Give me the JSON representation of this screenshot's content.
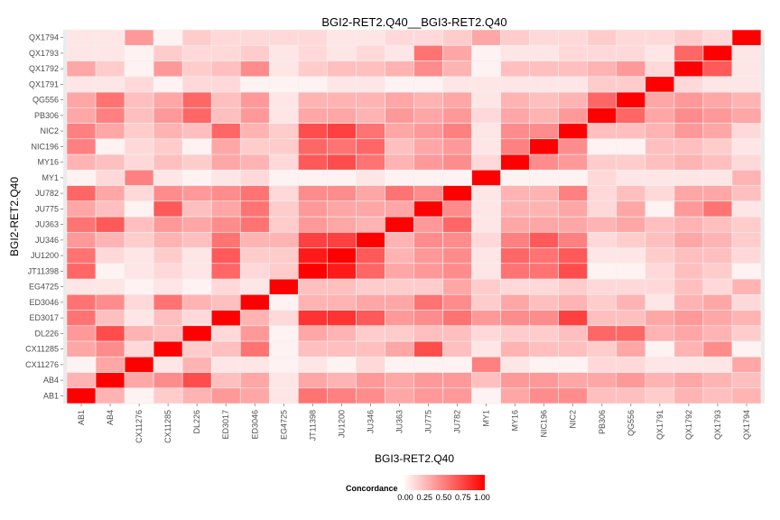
{
  "chart_data": {
    "type": "heatmap",
    "title": "BGI2-RET2.Q40__BGI3-RET2.Q40",
    "xlabel": "BGI3-RET2.Q40",
    "ylabel": "BGI2-RET2.Q40",
    "x_categories": [
      "AB1",
      "AB4",
      "CX11276",
      "CX11285",
      "DL226",
      "ED3017",
      "ED3046",
      "EG4725",
      "JT11398",
      "JU1200",
      "JU346",
      "JU363",
      "JU775",
      "JU782",
      "MY1",
      "MY16",
      "NIC196",
      "NIC2",
      "PB306",
      "QG556",
      "QX1791",
      "QX1792",
      "QX1793",
      "QX1794"
    ],
    "y_categories": [
      "AB1",
      "AB4",
      "CX11276",
      "CX11285",
      "DL226",
      "ED3017",
      "ED3046",
      "EG4725",
      "JT11398",
      "JU1200",
      "JU346",
      "JU363",
      "JU775",
      "JU782",
      "MY1",
      "MY16",
      "NIC196",
      "NIC2",
      "PB306",
      "QG556",
      "QX1791",
      "QX1792",
      "QX1793",
      "QX1794"
    ],
    "value_range": [
      0,
      1
    ],
    "values": [
      [
        1.0,
        0.3,
        0.05,
        0.2,
        0.3,
        0.4,
        0.35,
        0.1,
        0.55,
        0.5,
        0.45,
        0.35,
        0.4,
        0.4,
        0.05,
        0.35,
        0.45,
        0.45,
        0.25,
        0.25,
        0.2,
        0.3,
        0.25,
        0.3
      ],
      [
        0.3,
        1.0,
        0.35,
        0.45,
        0.7,
        0.25,
        0.35,
        0.1,
        0.35,
        0.3,
        0.4,
        0.35,
        0.4,
        0.4,
        0.25,
        0.4,
        0.4,
        0.35,
        0.35,
        0.4,
        0.3,
        0.35,
        0.3,
        0.25
      ],
      [
        0.05,
        0.35,
        1.0,
        0.1,
        0.3,
        0.1,
        0.1,
        0.05,
        0.1,
        0.05,
        0.15,
        0.05,
        0.05,
        0.05,
        0.5,
        0.1,
        0.05,
        0.05,
        0.15,
        0.15,
        0.1,
        0.1,
        0.1,
        0.35
      ],
      [
        0.35,
        0.45,
        0.15,
        1.0,
        0.2,
        0.25,
        0.55,
        0.05,
        0.25,
        0.25,
        0.25,
        0.35,
        0.7,
        0.25,
        0.1,
        0.3,
        0.25,
        0.25,
        0.2,
        0.35,
        0.05,
        0.3,
        0.45,
        0.05
      ],
      [
        0.4,
        0.7,
        0.3,
        0.25,
        1.0,
        0.15,
        0.4,
        0.05,
        0.35,
        0.3,
        0.2,
        0.2,
        0.25,
        0.25,
        0.15,
        0.2,
        0.2,
        0.25,
        0.6,
        0.6,
        0.3,
        0.35,
        0.3,
        0.2
      ],
      [
        0.55,
        0.25,
        0.1,
        0.25,
        0.15,
        1.0,
        0.3,
        0.15,
        0.8,
        0.8,
        0.65,
        0.4,
        0.45,
        0.55,
        0.4,
        0.45,
        0.45,
        0.75,
        0.25,
        0.25,
        0.35,
        0.4,
        0.35,
        0.3
      ],
      [
        0.55,
        0.45,
        0.15,
        0.55,
        0.3,
        0.25,
        1.0,
        0.05,
        0.3,
        0.3,
        0.35,
        0.35,
        0.55,
        0.45,
        0.2,
        0.35,
        0.25,
        0.3,
        0.2,
        0.3,
        0.1,
        0.3,
        0.35,
        0.15
      ],
      [
        0.1,
        0.1,
        0.05,
        0.1,
        0.05,
        0.15,
        0.1,
        1.0,
        0.25,
        0.25,
        0.2,
        0.2,
        0.2,
        0.35,
        0.2,
        0.15,
        0.15,
        0.2,
        0.15,
        0.15,
        0.15,
        0.25,
        0.15,
        0.3
      ],
      [
        0.6,
        0.05,
        0.1,
        0.15,
        0.1,
        0.6,
        0.15,
        0.2,
        1.0,
        0.9,
        0.6,
        0.35,
        0.4,
        0.45,
        0.1,
        0.55,
        0.55,
        0.7,
        0.05,
        0.05,
        0.15,
        0.25,
        0.2,
        0.05
      ],
      [
        0.55,
        0.15,
        0.1,
        0.2,
        0.1,
        0.65,
        0.2,
        0.2,
        0.9,
        1.0,
        0.65,
        0.3,
        0.4,
        0.45,
        0.1,
        0.6,
        0.55,
        0.65,
        0.1,
        0.1,
        0.2,
        0.25,
        0.25,
        0.15
      ],
      [
        0.4,
        0.3,
        0.2,
        0.3,
        0.25,
        0.55,
        0.3,
        0.3,
        0.75,
        0.75,
        1.0,
        0.3,
        0.45,
        0.45,
        0.15,
        0.5,
        0.65,
        0.5,
        0.15,
        0.2,
        0.25,
        0.35,
        0.3,
        0.2
      ],
      [
        0.55,
        0.65,
        0.25,
        0.4,
        0.35,
        0.45,
        0.55,
        0.2,
        0.4,
        0.35,
        0.3,
        1.0,
        0.4,
        0.6,
        0.1,
        0.35,
        0.35,
        0.35,
        0.3,
        0.35,
        0.25,
        0.3,
        0.25,
        0.2
      ],
      [
        0.35,
        0.25,
        0.05,
        0.65,
        0.25,
        0.35,
        0.55,
        0.2,
        0.4,
        0.35,
        0.35,
        0.35,
        1.0,
        0.45,
        0.1,
        0.3,
        0.3,
        0.35,
        0.15,
        0.35,
        0.05,
        0.4,
        0.55,
        0.1
      ],
      [
        0.6,
        0.35,
        0.15,
        0.45,
        0.4,
        0.45,
        0.55,
        0.15,
        0.45,
        0.45,
        0.35,
        0.55,
        0.45,
        1.0,
        0.1,
        0.3,
        0.3,
        0.5,
        0.15,
        0.25,
        0.15,
        0.35,
        0.35,
        0.25
      ],
      [
        0.05,
        0.15,
        0.5,
        0.1,
        0.05,
        0.1,
        0.15,
        0.05,
        0.05,
        0.05,
        0.1,
        0.05,
        0.05,
        0.05,
        1.0,
        0.05,
        0.05,
        0.05,
        0.15,
        0.1,
        0.1,
        0.1,
        0.1,
        0.3
      ],
      [
        0.3,
        0.25,
        0.15,
        0.25,
        0.2,
        0.35,
        0.3,
        0.15,
        0.65,
        0.7,
        0.55,
        0.3,
        0.4,
        0.45,
        0.15,
        1.0,
        0.45,
        0.4,
        0.2,
        0.2,
        0.25,
        0.3,
        0.25,
        0.15
      ],
      [
        0.5,
        0.05,
        0.15,
        0.2,
        0.05,
        0.35,
        0.2,
        0.2,
        0.6,
        0.55,
        0.6,
        0.25,
        0.35,
        0.4,
        0.1,
        0.5,
        1.0,
        0.45,
        0.05,
        0.05,
        0.25,
        0.25,
        0.2,
        0.1
      ],
      [
        0.5,
        0.35,
        0.2,
        0.3,
        0.25,
        0.6,
        0.3,
        0.2,
        0.7,
        0.75,
        0.55,
        0.35,
        0.4,
        0.5,
        0.1,
        0.45,
        0.45,
        1.0,
        0.25,
        0.25,
        0.3,
        0.4,
        0.35,
        0.15
      ],
      [
        0.35,
        0.5,
        0.25,
        0.4,
        0.6,
        0.25,
        0.4,
        0.1,
        0.35,
        0.35,
        0.3,
        0.4,
        0.35,
        0.4,
        0.15,
        0.35,
        0.3,
        0.4,
        1.0,
        0.6,
        0.35,
        0.45,
        0.4,
        0.35
      ],
      [
        0.35,
        0.55,
        0.25,
        0.35,
        0.6,
        0.25,
        0.4,
        0.1,
        0.3,
        0.3,
        0.3,
        0.35,
        0.3,
        0.35,
        0.1,
        0.3,
        0.25,
        0.3,
        0.6,
        1.0,
        0.35,
        0.4,
        0.35,
        0.3
      ],
      [
        0.1,
        0.1,
        0.15,
        0.05,
        0.15,
        0.15,
        0.05,
        0.05,
        0.05,
        0.1,
        0.1,
        0.05,
        0.05,
        0.1,
        0.1,
        0.1,
        0.1,
        0.1,
        0.2,
        0.2,
        1.0,
        0.15,
        0.1,
        0.1
      ],
      [
        0.35,
        0.2,
        0.05,
        0.4,
        0.2,
        0.25,
        0.45,
        0.1,
        0.2,
        0.25,
        0.25,
        0.3,
        0.45,
        0.3,
        0.05,
        0.25,
        0.25,
        0.25,
        0.3,
        0.4,
        0.15,
        1.0,
        0.65,
        0.1
      ],
      [
        0.1,
        0.1,
        0.05,
        0.2,
        0.15,
        0.15,
        0.2,
        0.1,
        0.15,
        0.1,
        0.15,
        0.1,
        0.55,
        0.35,
        0.05,
        0.1,
        0.1,
        0.15,
        0.15,
        0.15,
        0.1,
        0.6,
        1.0,
        0.1
      ],
      [
        0.1,
        0.1,
        0.4,
        0.05,
        0.2,
        0.15,
        0.15,
        0.15,
        0.15,
        0.1,
        0.1,
        0.15,
        0.15,
        0.2,
        0.35,
        0.2,
        0.15,
        0.15,
        0.2,
        0.15,
        0.15,
        0.2,
        0.15,
        1.0
      ]
    ],
    "color_low": "#ffffff",
    "color_high": "#ff0000",
    "panel_background": "#ebebeb",
    "grid": true,
    "legend": {
      "title": "Concordance",
      "position": "bottom",
      "ticks": [
        "0.00",
        "0.25",
        "0.50",
        "0.75",
        "1.00"
      ]
    }
  }
}
